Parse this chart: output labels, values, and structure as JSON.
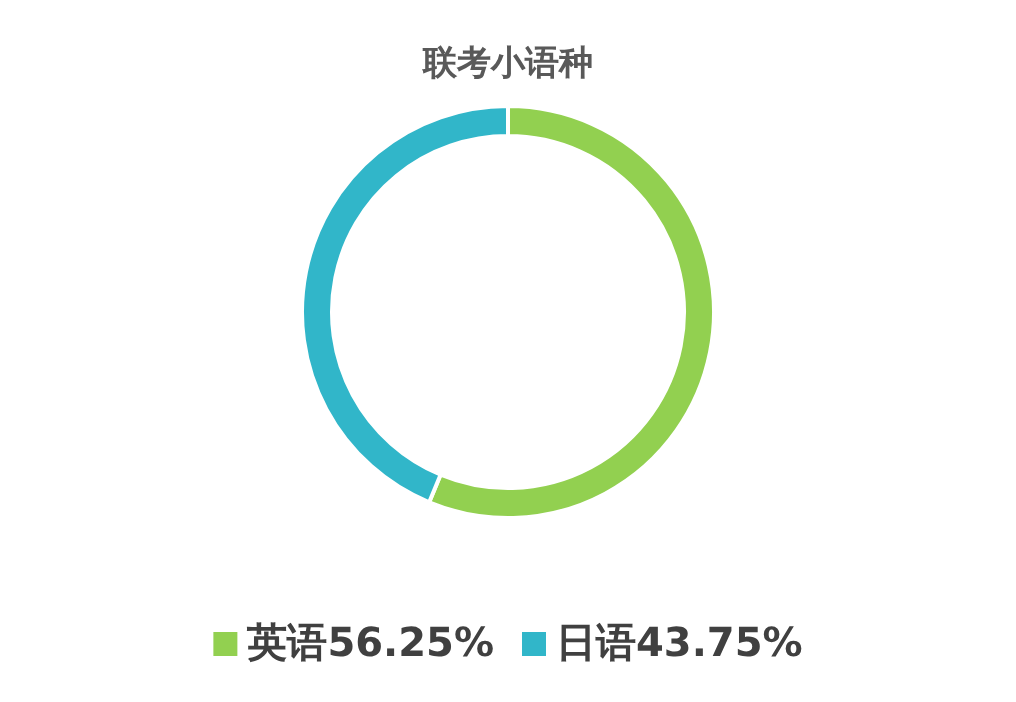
{
  "chart_data": {
    "type": "donut",
    "title": "联考小语种",
    "categories": [
      "英语56.25%",
      "日语43.75%"
    ],
    "values": [
      56.25,
      43.75
    ],
    "colors": [
      "#92d050",
      "#31b6c9"
    ],
    "legend": "bottom"
  }
}
